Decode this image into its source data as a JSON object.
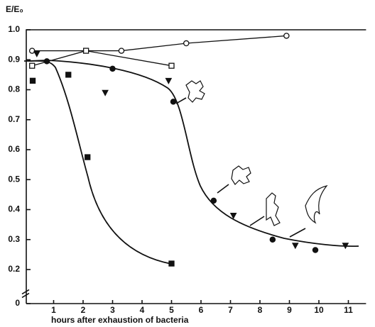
{
  "chart_data": {
    "type": "scatter",
    "y_label": "E/E₀",
    "x_label": "hours after exhaustion of bacteria",
    "xlim": [
      0,
      11.6
    ],
    "xticks": [
      1,
      2,
      3,
      4,
      5,
      6,
      7,
      8,
      9,
      10,
      11
    ],
    "ylim": [
      0,
      1
    ],
    "y_break": 0.16,
    "yticks": [
      0,
      0.2,
      0.3,
      0.4,
      0.5,
      0.6,
      0.7,
      0.8,
      0.9,
      {
        "value": 1,
        "label": "1.0"
      }
    ],
    "series": [
      {
        "marker": "circle-open",
        "connect": true,
        "color": "#111",
        "x": [
          0.27,
          3.3,
          5.5,
          8.9
        ],
        "values": [
          0.93,
          0.93,
          0.955,
          0.98
        ]
      },
      {
        "marker": "square-open",
        "connect": true,
        "color": "#111",
        "x": [
          0.27,
          2.1,
          5.0
        ],
        "values": [
          0.88,
          0.93,
          0.88
        ]
      },
      {
        "marker": "circle",
        "connect": false,
        "color": "#111",
        "x": [
          0.77,
          3.0,
          5.06,
          6.43,
          8.43,
          9.88
        ],
        "values": [
          0.895,
          0.87,
          0.76,
          0.43,
          0.3,
          0.265
        ]
      },
      {
        "marker": "triangle",
        "connect": false,
        "color": "#111",
        "x": [
          0.43,
          2.75,
          4.9,
          7.1,
          9.2,
          10.9
        ],
        "values": [
          0.92,
          0.79,
          0.83,
          0.38,
          0.28,
          0.28
        ]
      },
      {
        "marker": "square",
        "connect": false,
        "color": "#111",
        "x": [
          0.29,
          1.5,
          2.15,
          5.0
        ],
        "values": [
          0.83,
          0.85,
          0.575,
          0.22
        ]
      }
    ]
  }
}
